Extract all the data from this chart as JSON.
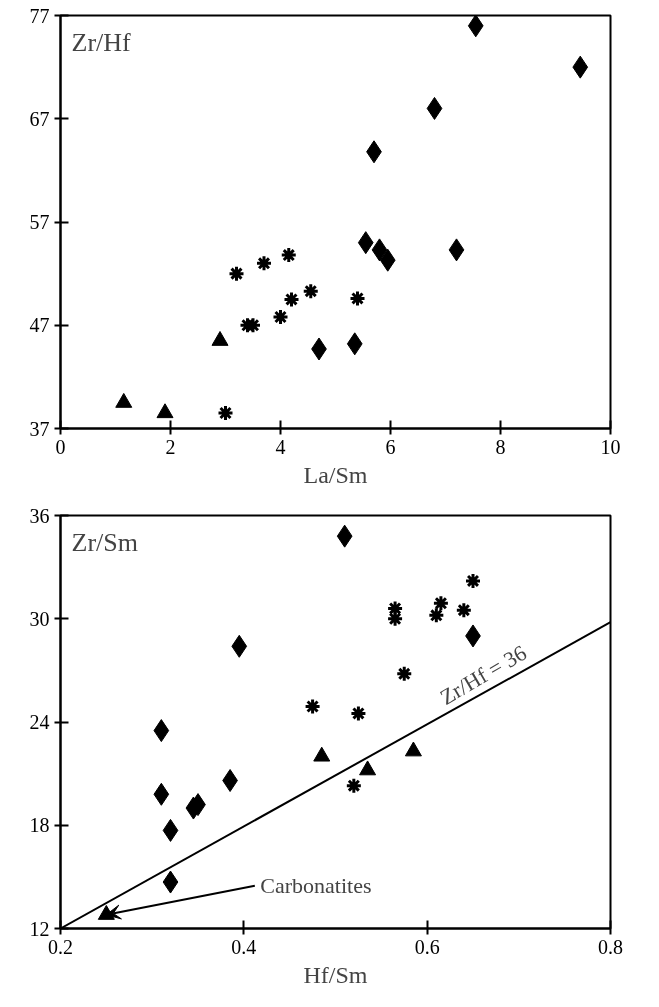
{
  "chart_data": [
    {
      "type": "scatter",
      "ylabel": "Zr/Hf",
      "xlabel": "La/Sm",
      "xlim": [
        0,
        10
      ],
      "ylim": [
        37,
        77
      ],
      "xticks": [
        0,
        2,
        4,
        6,
        8,
        10
      ],
      "yticks": [
        37,
        47,
        57,
        67,
        77
      ],
      "grid": false,
      "series": [
        {
          "color": "#000000",
          "marker": "diamond",
          "x": [
            7.55,
            9.45,
            6.8,
            5.7,
            5.55,
            5.8,
            5.95,
            7.2,
            4.7,
            5.35
          ],
          "values": [
            76,
            72,
            68,
            63.8,
            55,
            54.3,
            53.3,
            54.3,
            44.7,
            45.2
          ]
        },
        {
          "color": "#000000",
          "marker": "cross",
          "x": [
            3.2,
            3.7,
            4.15,
            3.4,
            3.5,
            4.0,
            4.2,
            4.55,
            5.4,
            3.0
          ],
          "values": [
            52,
            53,
            53.8,
            47,
            47,
            47.8,
            49.5,
            50.3,
            49.6,
            38.5
          ]
        },
        {
          "color": "#000000",
          "marker": "triangle",
          "x": [
            2.9,
            1.15,
            1.9
          ],
          "values": [
            45.5,
            39.5,
            38.5
          ]
        }
      ]
    },
    {
      "type": "scatter",
      "ylabel": "Zr/Sm",
      "xlabel": "Hf/Sm",
      "xlim": [
        0.2,
        0.8
      ],
      "ylim": [
        12,
        36
      ],
      "xticks": [
        0.2,
        0.4,
        0.6,
        0.8
      ],
      "yticks": [
        12,
        18,
        24,
        30,
        36
      ],
      "grid": false,
      "series": [
        {
          "color": "#000000",
          "marker": "diamond",
          "x": [
            0.51,
            0.395,
            0.65,
            0.31,
            0.31,
            0.345,
            0.35,
            0.385,
            0.32,
            0.32
          ],
          "values": [
            34.8,
            28.4,
            29,
            23.5,
            19.8,
            19,
            19.2,
            20.6,
            17.7,
            14.7
          ]
        },
        {
          "color": "#000000",
          "marker": "cross",
          "x": [
            0.65,
            0.565,
            0.565,
            0.615,
            0.61,
            0.64,
            0.575,
            0.475,
            0.525,
            0.52
          ],
          "values": [
            32.2,
            30.6,
            30,
            30.9,
            30.2,
            30.5,
            26.8,
            24.9,
            24.5,
            20.3
          ]
        },
        {
          "color": "#000000",
          "marker": "triangle",
          "x": [
            0.485,
            0.535,
            0.585,
            0.25
          ],
          "values": [
            22,
            21.2,
            22.3,
            12.8
          ]
        },
        {
          "type": "line",
          "name": "Zr/Hf = 36",
          "color": "#000000",
          "line_style": "solid",
          "x": [
            0.2,
            0.8
          ],
          "values": [
            12,
            29.8
          ]
        }
      ],
      "annotations": [
        {
          "text": "Carbonatites",
          "x": 0.25,
          "y": 12.8
        }
      ]
    }
  ]
}
